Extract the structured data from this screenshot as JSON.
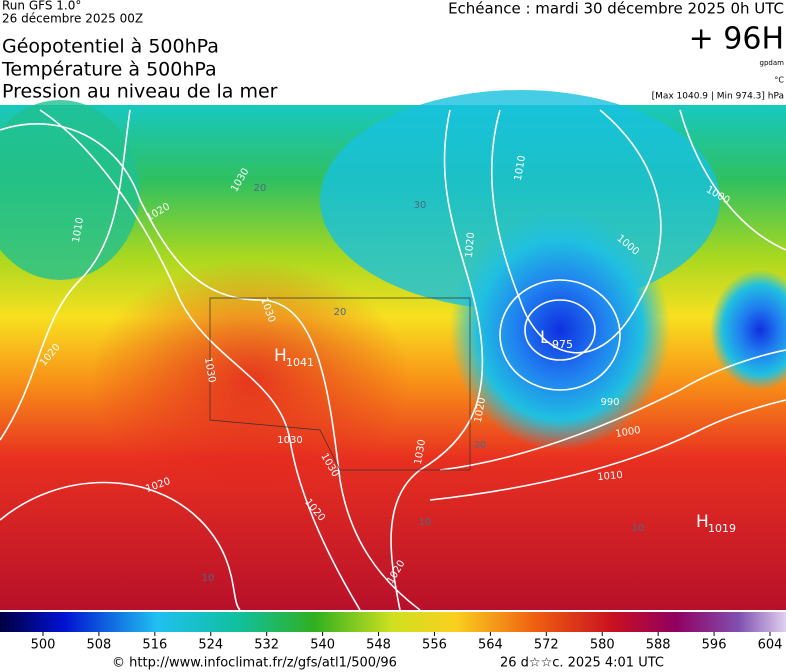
{
  "header": {
    "run": "Run GFS 1.0°",
    "date": "26 décembre 2025 00Z",
    "titles": [
      "Géopotentiel à 500hPa",
      "Température à 500hPa",
      "Pression au niveau de la mer"
    ],
    "echeance": "Echéance : mardi 30 décembre 2025 0h UTC",
    "lead": "+ 96H",
    "unit_geo": "gpdam",
    "unit_temp": "°C",
    "range": "[Max 1040.9 | Min 974.3] hPa"
  },
  "map": {
    "centers": [
      {
        "letter": "H",
        "value": "1041"
      },
      {
        "letter": "L",
        "value": "975"
      },
      {
        "letter": "H",
        "value": "1019"
      }
    ],
    "isobar_labels": [
      "1030",
      "1020",
      "1010",
      "1010",
      "1020",
      "1000",
      "1000",
      "1030",
      "1030",
      "1020",
      "1030",
      "1030",
      "1020",
      "1020",
      "1020",
      "1030",
      "990",
      "1000",
      "1010",
      "1020"
    ],
    "temperature_labels": [
      "20",
      "30",
      "20",
      "20",
      "10",
      "10",
      "10"
    ]
  },
  "colorbar": {
    "ticks": [
      500,
      508,
      516,
      524,
      532,
      540,
      548,
      556,
      564,
      572,
      580,
      588,
      596,
      604
    ]
  },
  "footer": {
    "source": "© http://www.infoclimat.fr/z/gfs/atl1/500/96",
    "time": "26 d☆☆c. 2025  4:01 UTC"
  }
}
